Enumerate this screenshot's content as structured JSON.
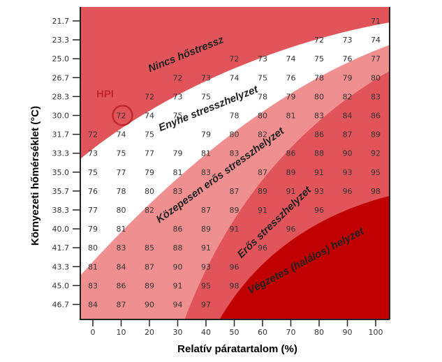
{
  "chart_data": {
    "type": "heatmap",
    "xlabel": "Relatív páratartalom (%)",
    "ylabel": "Környezeti hőmérséklet (°C)",
    "x": [
      0,
      10,
      20,
      30,
      40,
      50,
      60,
      70,
      80,
      90,
      100
    ],
    "x_tick_labels": [
      "0",
      "10",
      "20",
      "30",
      "40",
      "50",
      "60",
      "70",
      "80",
      "90",
      "100"
    ],
    "y": [
      21.7,
      23.3,
      25.0,
      26.7,
      28.3,
      30.0,
      31.7,
      33.3,
      35.0,
      35.7,
      38.3,
      40.0,
      41.7,
      43.3,
      45.0,
      46.7
    ],
    "y_tick_labels": [
      "21.7",
      "23.3",
      "25.0",
      "26.7",
      "28.3",
      "30.0",
      "31.7",
      "33.3",
      "35.0",
      "35.7",
      "38.3",
      "40.0",
      "41.7",
      "43.3",
      "45.0",
      "46.7"
    ],
    "values": [
      [
        null,
        null,
        null,
        null,
        null,
        null,
        null,
        null,
        null,
        null,
        71
      ],
      [
        null,
        null,
        null,
        null,
        null,
        null,
        null,
        null,
        72,
        73,
        74
      ],
      [
        null,
        null,
        null,
        null,
        null,
        72,
        73,
        74,
        75,
        76,
        77
      ],
      [
        null,
        null,
        null,
        72,
        73,
        74,
        75,
        76,
        78,
        79,
        80
      ],
      [
        null,
        null,
        72,
        73,
        75,
        null,
        78,
        79,
        80,
        82,
        83
      ],
      [
        null,
        72,
        74,
        75,
        null,
        78,
        80,
        81,
        83,
        84,
        86
      ],
      [
        72,
        74,
        75,
        null,
        79,
        80,
        82,
        null,
        86,
        87,
        89
      ],
      [
        73,
        75,
        77,
        79,
        81,
        83,
        null,
        86,
        88,
        90,
        92
      ],
      [
        75,
        77,
        79,
        81,
        83,
        null,
        87,
        89,
        91,
        93,
        95
      ],
      [
        76,
        78,
        80,
        83,
        null,
        87,
        89,
        91,
        93,
        96,
        98
      ],
      [
        77,
        80,
        82,
        null,
        87,
        89,
        91,
        null,
        96,
        null,
        null
      ],
      [
        79,
        81,
        null,
        86,
        89,
        91,
        null,
        96,
        null,
        null,
        null
      ],
      [
        80,
        83,
        85,
        88,
        91,
        null,
        96,
        null,
        null,
        null,
        null
      ],
      [
        81,
        84,
        87,
        90,
        93,
        96,
        null,
        null,
        null,
        null,
        null
      ],
      [
        83,
        86,
        89,
        91,
        95,
        98,
        null,
        null,
        null,
        null,
        null
      ],
      [
        84,
        87,
        90,
        94,
        97,
        null,
        null,
        null,
        null,
        null,
        null
      ]
    ],
    "zone_labels": [
      "Nincs hőstressz",
      "Enyhe stresszhelyzet",
      "Közepesen erős stresszhelyzet",
      "Erős stresszhelyzet",
      "Végzetes (halálos) helyzet"
    ],
    "zone_colors": [
      "#ffffff",
      "#f7c2c2",
      "#ef8f90",
      "#e0545a",
      "#c00000"
    ],
    "annotation": {
      "label": "HPI",
      "x": 10,
      "y": 30.0,
      "color": "#c0282b"
    }
  }
}
